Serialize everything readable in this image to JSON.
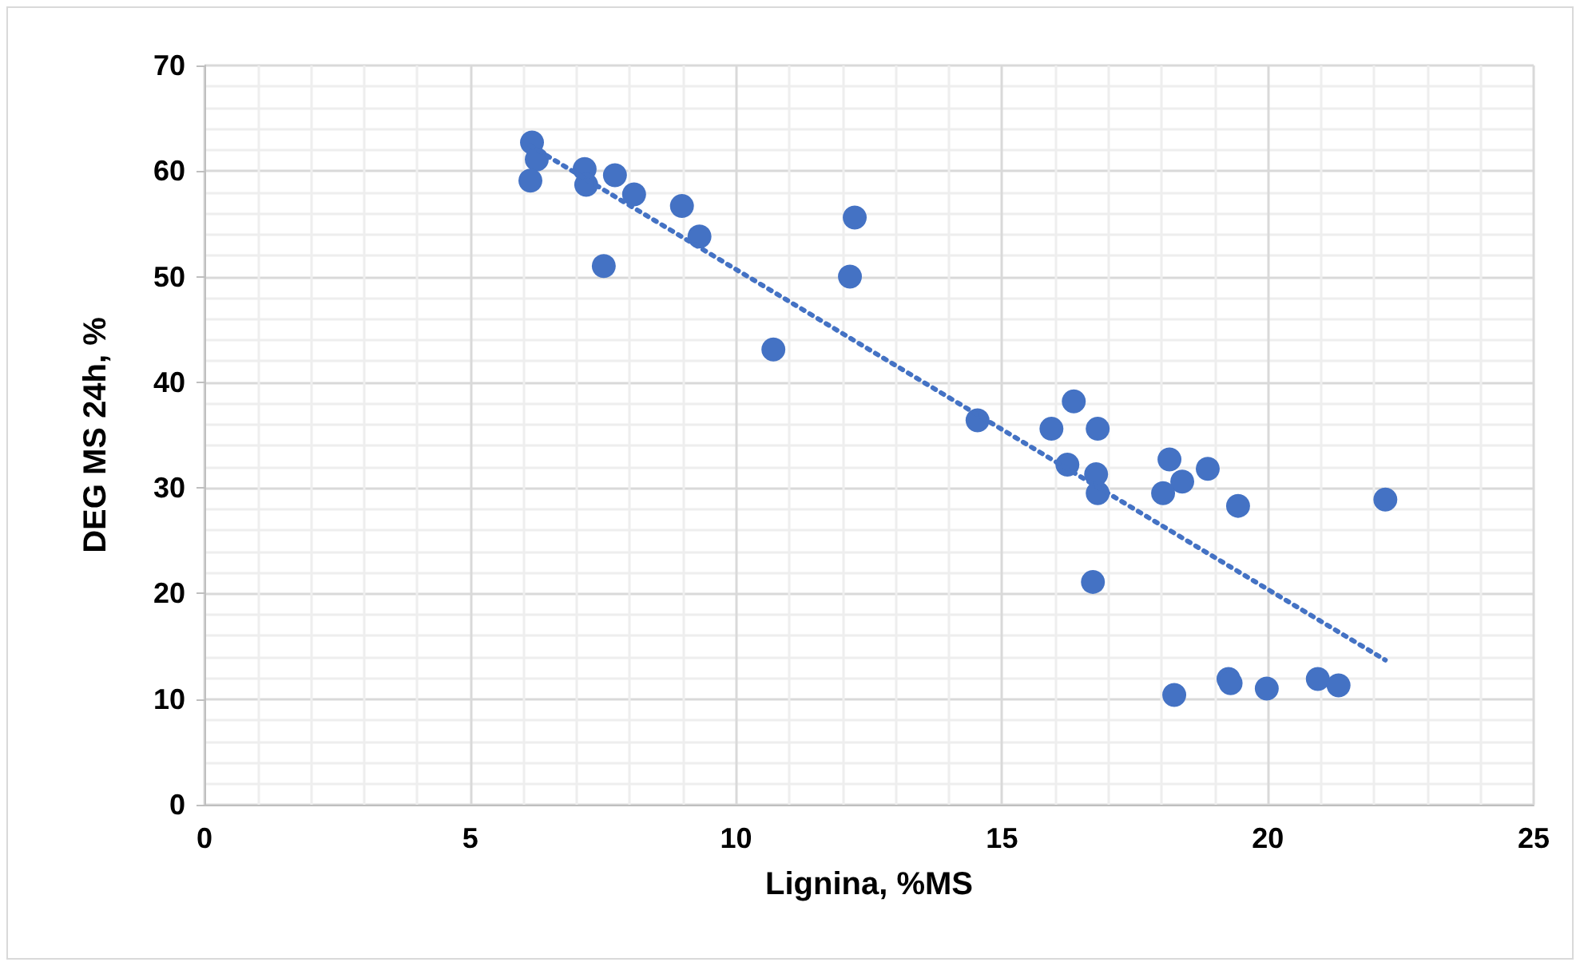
{
  "chart_data": {
    "type": "scatter",
    "xlabel": "Lignina, %MS",
    "ylabel": "DEG MS 24h, %",
    "xlim": [
      0,
      25
    ],
    "xticks": [
      0,
      5,
      10,
      15,
      20,
      25
    ],
    "ylim": [
      0,
      70
    ],
    "yticks": [
      0,
      10,
      20,
      30,
      40,
      50,
      60,
      70
    ],
    "grid": true,
    "marker": "circle",
    "series": [
      {
        "color": "#4472c4",
        "x": [
          6.16,
          6.25,
          6.13,
          7.15,
          7.18,
          7.72,
          8.08,
          8.98,
          9.31,
          7.51,
          12.23,
          12.14,
          10.7,
          14.54,
          16.35,
          15.93,
          16.8,
          16.23,
          16.77,
          16.8,
          16.71,
          18.15,
          18.39,
          18.03,
          18.87,
          19.44,
          22.21,
          18.24,
          19.26,
          19.3,
          19.98,
          20.94,
          21.33
        ],
        "values": [
          62.7,
          61.1,
          59.1,
          60.2,
          58.7,
          59.6,
          57.8,
          56.7,
          53.8,
          51.0,
          55.6,
          50.0,
          43.1,
          36.4,
          38.2,
          35.6,
          35.6,
          32.2,
          31.3,
          29.5,
          21.1,
          32.7,
          30.6,
          29.5,
          31.8,
          28.3,
          28.9,
          10.4,
          11.9,
          11.5,
          11.0,
          11.9,
          11.3
        ]
      },
      {
        "type": "line",
        "color": "#4472c4",
        "line_style": "dotted",
        "marker": "none",
        "x": [
          6.13,
          22.21
        ],
        "values": [
          62.4,
          13.7
        ]
      }
    ]
  }
}
